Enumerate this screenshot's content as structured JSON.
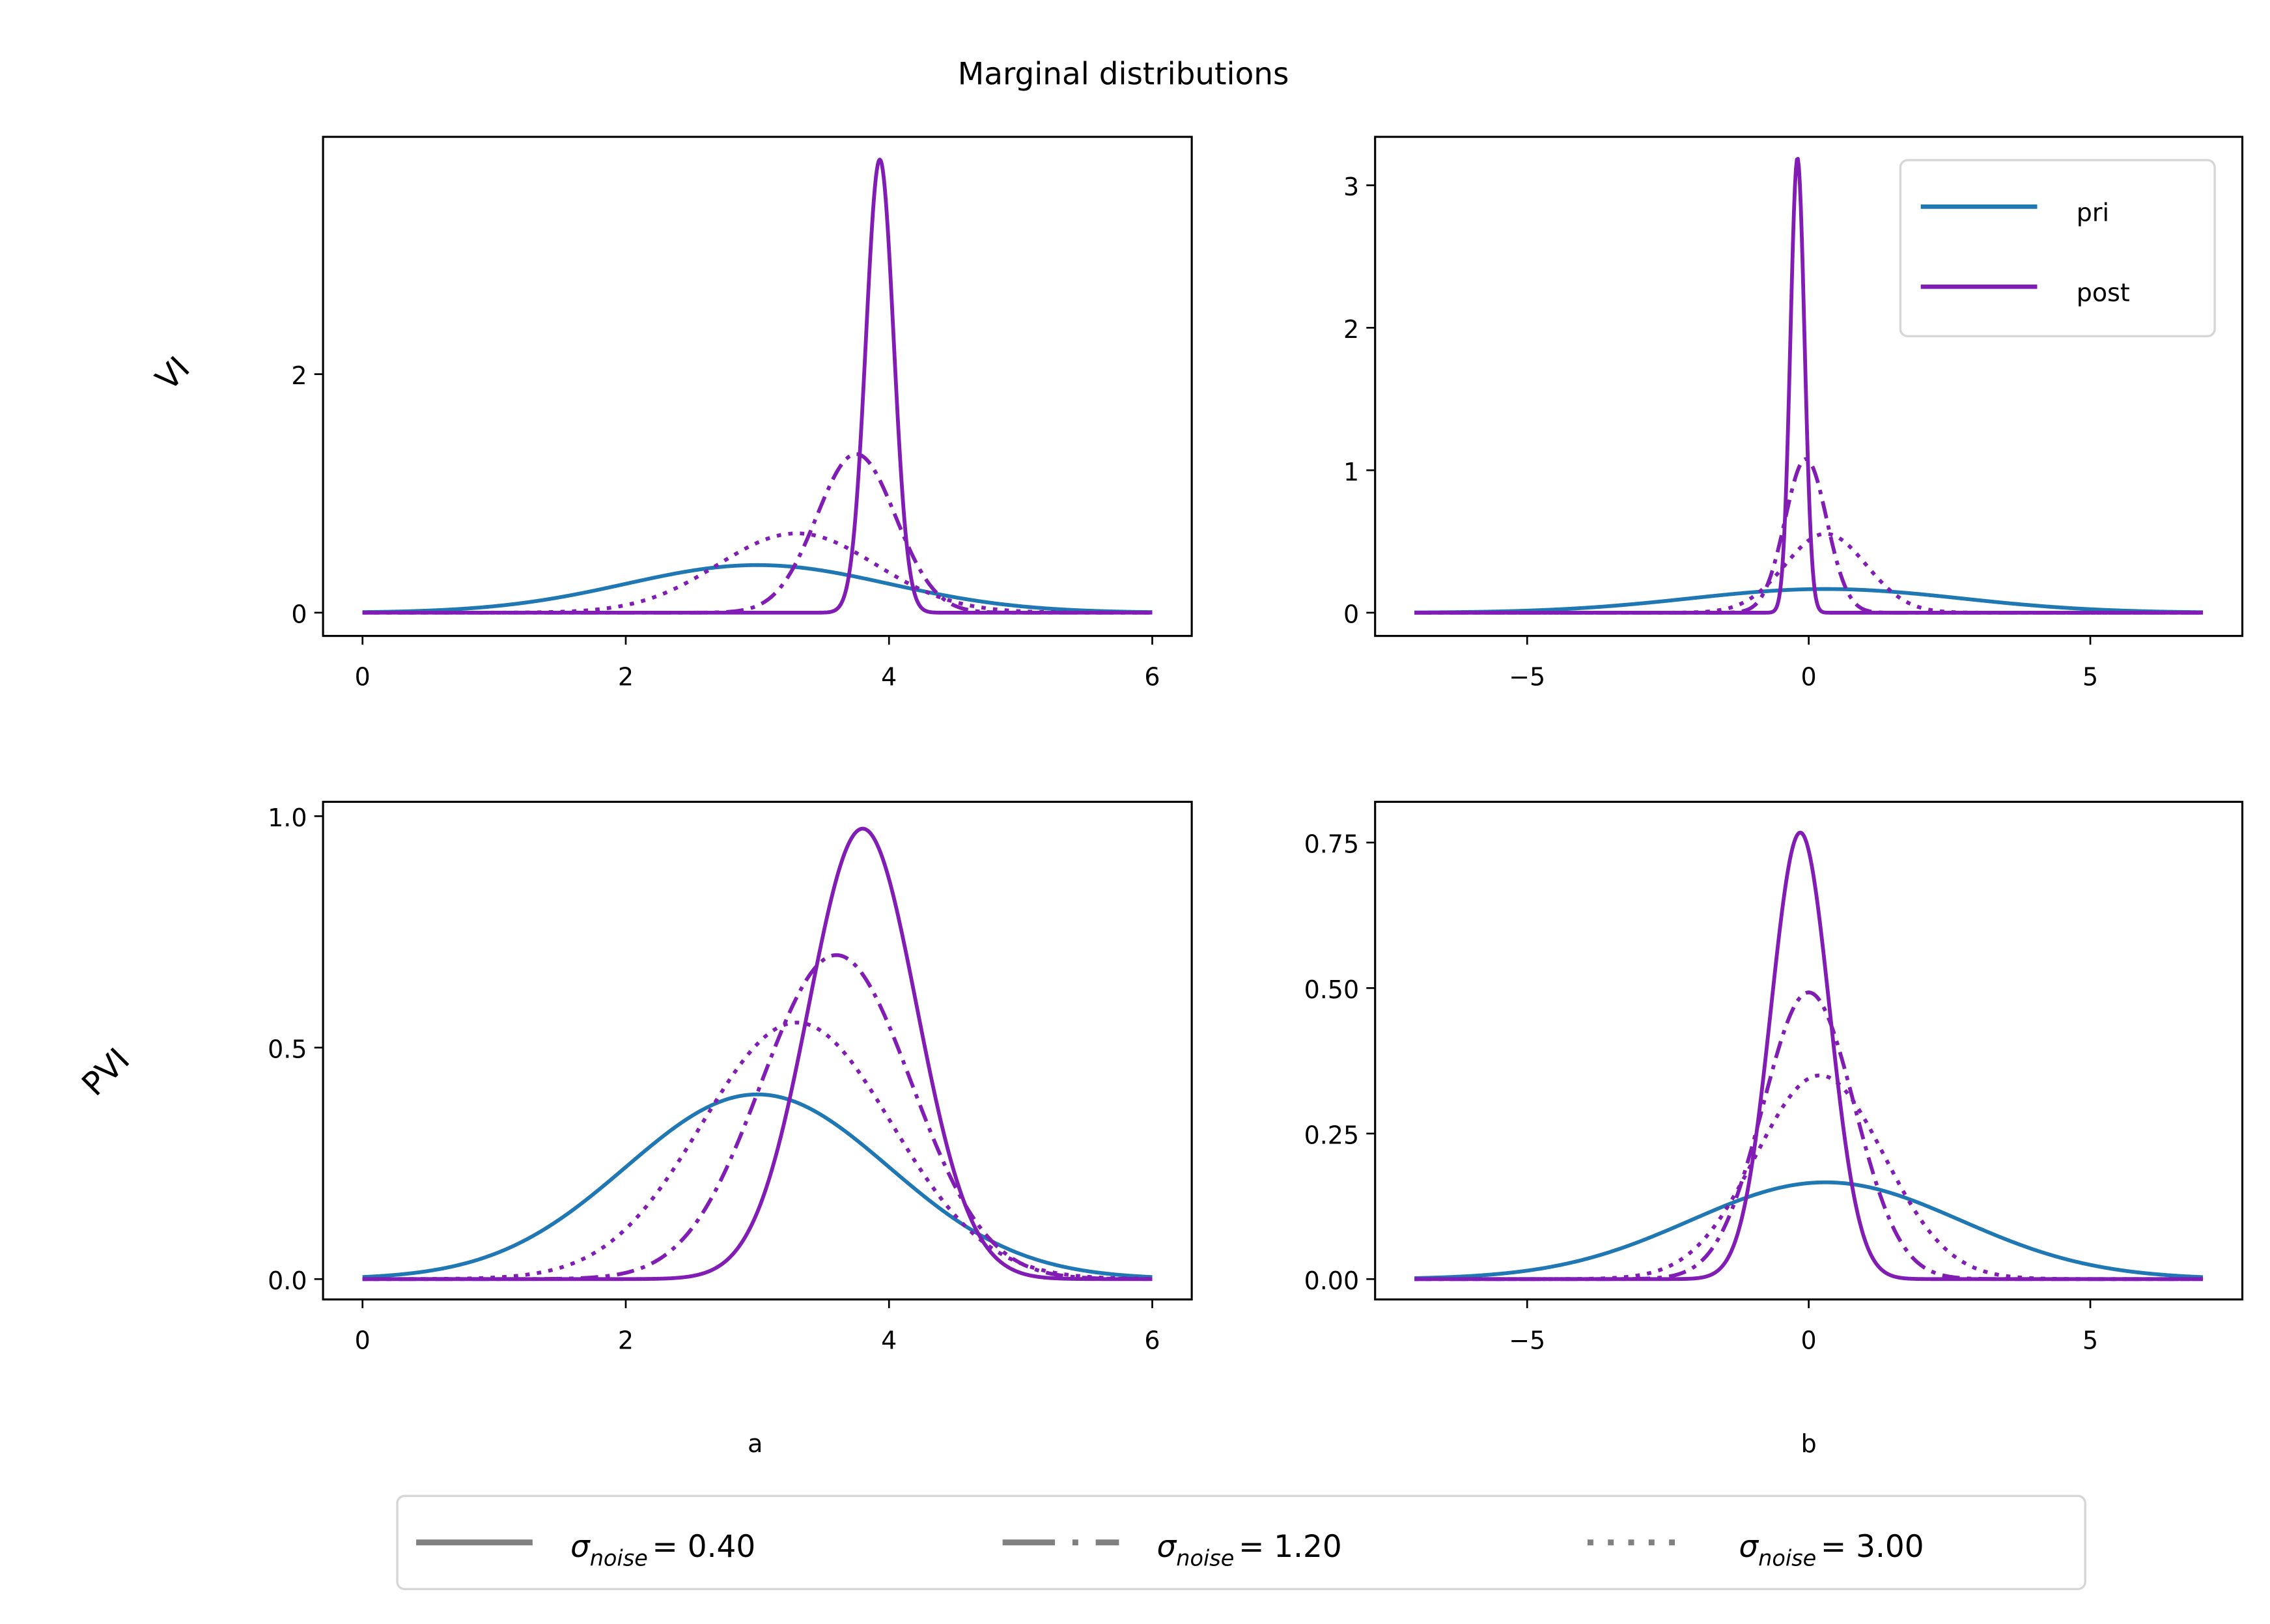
{
  "title": "Marginal distributions",
  "colors": {
    "prior": "#1f77b4",
    "posterior": "#811cb5",
    "legend_line": "#808080"
  },
  "legend_top": {
    "placement": "upper right of VI/b panel",
    "entries": [
      {
        "label": "pri",
        "color": "#1f77b4"
      },
      {
        "label": "post",
        "color": "#811cb5"
      }
    ]
  },
  "legend_bottom": {
    "placement": "bottom center",
    "entries": [
      {
        "style": "solid",
        "symbol": "σ",
        "sub": "noise",
        "value": "= 0.40"
      },
      {
        "style": "dashdot",
        "symbol": "σ",
        "sub": "noise",
        "value": "= 1.20"
      },
      {
        "style": "dotted",
        "symbol": "σ",
        "sub": "noise",
        "value": "= 3.00"
      }
    ]
  },
  "row_labels": [
    "VI",
    "PVI"
  ],
  "col_labels": [
    "a",
    "b"
  ],
  "chart_data": [
    {
      "type": "line",
      "row": "VI",
      "xlabel": "",
      "xlim": [
        -0.3,
        6.3
      ],
      "ylim": [
        -0.195,
        3.99
      ],
      "xticks": [
        0,
        2,
        4,
        6
      ],
      "xtick_labels": [
        "0",
        "2",
        "4",
        "6"
      ],
      "yticks": [
        0,
        2
      ],
      "ytick_labels": [
        "0",
        "2"
      ],
      "series": [
        {
          "kind": "prior",
          "style": "solid",
          "distribution": "normal",
          "mean": 3.0,
          "std": 1.0
        },
        {
          "kind": "posterior",
          "style": "solid",
          "distribution": "normal",
          "mean": 3.93,
          "std": 0.105
        },
        {
          "kind": "posterior",
          "style": "dashdot",
          "distribution": "normal",
          "mean": 3.75,
          "std": 0.3
        },
        {
          "kind": "posterior",
          "style": "dotted",
          "distribution": "normal",
          "mean": 3.3,
          "std": 0.6
        }
      ]
    },
    {
      "type": "line",
      "row": "VI",
      "xlabel": "",
      "xlim": [
        -7.7,
        7.7
      ],
      "ylim": [
        -0.163,
        3.34
      ],
      "xticks": [
        -5,
        0,
        5
      ],
      "xtick_labels": [
        "−5",
        "0",
        "5"
      ],
      "yticks": [
        0,
        1,
        2,
        3
      ],
      "ytick_labels": [
        "0",
        "1",
        "2",
        "3"
      ],
      "series": [
        {
          "kind": "prior",
          "style": "solid",
          "distribution": "normal",
          "mean": 0.3,
          "std": 2.4
        },
        {
          "kind": "posterior",
          "style": "solid",
          "distribution": "normal",
          "mean": -0.2,
          "std": 0.125
        },
        {
          "kind": "posterior",
          "style": "dashdot",
          "distribution": "normal",
          "mean": -0.05,
          "std": 0.37
        },
        {
          "kind": "posterior",
          "style": "dotted",
          "distribution": "normal",
          "mean": 0.3,
          "std": 0.72
        }
      ]
    },
    {
      "type": "line",
      "row": "PVI",
      "xlabel": "a",
      "xlim": [
        -0.3,
        6.3
      ],
      "ylim": [
        -0.044,
        1.031
      ],
      "xticks": [
        0,
        2,
        4,
        6
      ],
      "xtick_labels": [
        "0",
        "2",
        "4",
        "6"
      ],
      "yticks": [
        0,
        0.5,
        1.0
      ],
      "ytick_labels": [
        "0.0",
        "0.5",
        "1.0"
      ],
      "series": [
        {
          "kind": "prior",
          "style": "solid",
          "distribution": "normal",
          "mean": 3.0,
          "std": 1.0
        },
        {
          "kind": "posterior",
          "style": "solid",
          "distribution": "normal",
          "mean": 3.8,
          "std": 0.41
        },
        {
          "kind": "posterior",
          "style": "dashdot",
          "distribution": "normal",
          "mean": 3.6,
          "std": 0.57
        },
        {
          "kind": "posterior",
          "style": "dotted",
          "distribution": "normal",
          "mean": 3.3,
          "std": 0.72
        }
      ]
    },
    {
      "type": "line",
      "row": "PVI",
      "xlabel": "b",
      "xlim": [
        -7.7,
        7.7
      ],
      "ylim": [
        -0.035,
        0.82
      ],
      "xticks": [
        -5,
        0,
        5
      ],
      "xtick_labels": [
        "−5",
        "0",
        "5"
      ],
      "yticks": [
        0,
        0.25,
        0.5,
        0.75
      ],
      "ytick_labels": [
        "0.00",
        "0.25",
        "0.50",
        "0.75"
      ],
      "series": [
        {
          "kind": "prior",
          "style": "solid",
          "distribution": "normal",
          "mean": 0.3,
          "std": 2.4
        },
        {
          "kind": "posterior",
          "style": "solid",
          "distribution": "normal",
          "mean": -0.15,
          "std": 0.52
        },
        {
          "kind": "posterior",
          "style": "dashdot",
          "distribution": "normal",
          "mean": 0.0,
          "std": 0.81
        },
        {
          "kind": "posterior",
          "style": "dotted",
          "distribution": "normal",
          "mean": 0.2,
          "std": 1.14
        }
      ]
    }
  ]
}
